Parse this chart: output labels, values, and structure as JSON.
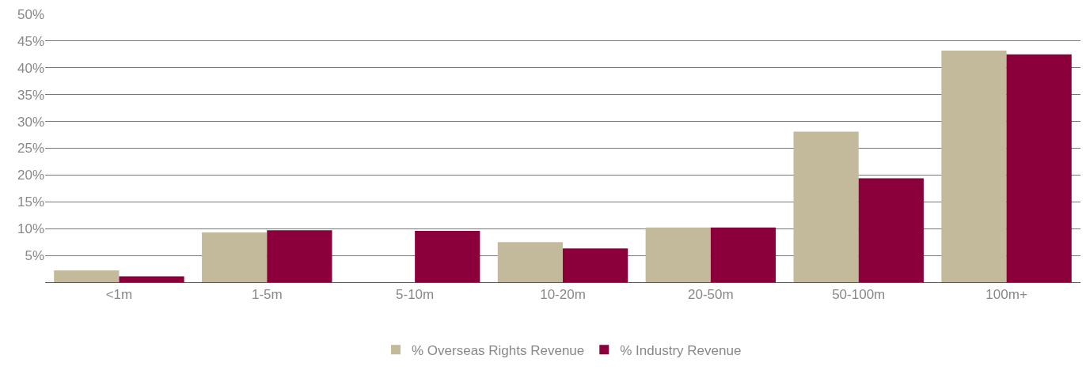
{
  "chart_data": {
    "type": "bar",
    "categories": [
      "<1m",
      "1-5m",
      "5-10m",
      "10-20m",
      "20-50m",
      "50-100m",
      "100m+"
    ],
    "series": [
      {
        "name": "% Overseas Rights Revenue",
        "color": "#c3b99b",
        "values": [
          2.2,
          9.3,
          null,
          7.5,
          10.2,
          28.1,
          43.2
        ]
      },
      {
        "name": "% Industry Revenue",
        "color": "#8b003a",
        "values": [
          1.1,
          9.7,
          9.6,
          6.3,
          10.2,
          19.4,
          42.5
        ]
      }
    ],
    "ylim": [
      0,
      50
    ],
    "yticks": [
      {
        "value": 5,
        "label": "5%"
      },
      {
        "value": 10,
        "label": "10%"
      },
      {
        "value": 15,
        "label": "15%"
      },
      {
        "value": 20,
        "label": "20%"
      },
      {
        "value": 25,
        "label": "25%"
      },
      {
        "value": 30,
        "label": "30%"
      },
      {
        "value": 35,
        "label": "35%"
      },
      {
        "value": 40,
        "label": "40%"
      },
      {
        "value": 45,
        "label": "45%"
      },
      {
        "value": 50,
        "label": "50%"
      }
    ],
    "grid": "y",
    "legend": "bottom"
  }
}
